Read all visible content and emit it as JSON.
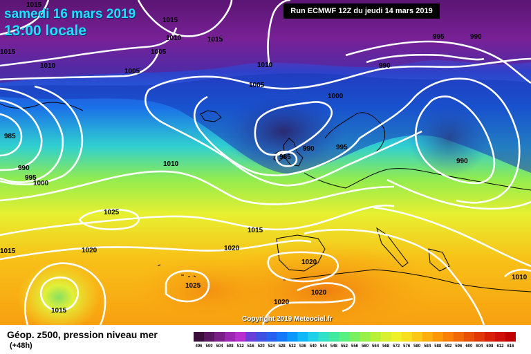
{
  "header": {
    "date": "samedi 16 mars 2019",
    "time": "13:00 locale",
    "run": "Run ECMWF 12Z du jeudi 14 mars 2019"
  },
  "footer": {
    "legend_title": "Géop. z500, pression niveau mer",
    "forecast_offset": "(+48h)",
    "copyright": "Copyright 2019 Meteociel.fr"
  },
  "scale": {
    "values": [
      "496",
      "500",
      "504",
      "508",
      "512",
      "516",
      "520",
      "524",
      "528",
      "532",
      "536",
      "540",
      "544",
      "548",
      "552",
      "556",
      "560",
      "564",
      "568",
      "572",
      "576",
      "580",
      "584",
      "588",
      "592",
      "596",
      "600",
      "604",
      "608",
      "612",
      "616"
    ],
    "colors": [
      "#3a0f3a",
      "#5a1760",
      "#7a1f88",
      "#9a27b0",
      "#b82fd0",
      "#6a3fd8",
      "#4050e0",
      "#2860f0",
      "#1478f8",
      "#0a98fa",
      "#10b8f8",
      "#20d0e8",
      "#30e0c8",
      "#40e8a0",
      "#58f080",
      "#78f060",
      "#98f048",
      "#b8f038",
      "#d8f030",
      "#f0f028",
      "#f8e020",
      "#fcc818",
      "#fcb010",
      "#fc9808",
      "#f88008",
      "#f06808",
      "#e85008",
      "#e03808",
      "#d82008",
      "#d01008",
      "#c00000"
    ]
  },
  "isobars": [
    {
      "text": "1015"
    },
    {
      "text": "1015"
    },
    {
      "text": "1010"
    },
    {
      "text": "1015"
    },
    {
      "text": "1005"
    },
    {
      "text": "1015"
    },
    {
      "text": "1010"
    },
    {
      "text": "1005"
    },
    {
      "text": "1010"
    },
    {
      "text": "1005"
    },
    {
      "text": "1000"
    },
    {
      "text": "995"
    },
    {
      "text": "990"
    },
    {
      "text": "990"
    },
    {
      "text": "985"
    },
    {
      "text": "990"
    },
    {
      "text": "995"
    },
    {
      "text": "1000"
    },
    {
      "text": "1010"
    },
    {
      "text": "985"
    },
    {
      "text": "990"
    },
    {
      "text": "995"
    },
    {
      "text": "990"
    },
    {
      "text": "1025"
    },
    {
      "text": "1015"
    },
    {
      "text": "1020"
    },
    {
      "text": "1020"
    },
    {
      "text": "1015"
    },
    {
      "text": "1020"
    },
    {
      "text": "1025"
    },
    {
      "text": "1015"
    },
    {
      "text": "1020"
    },
    {
      "text": "1020"
    },
    {
      "text": "1010"
    }
  ]
}
